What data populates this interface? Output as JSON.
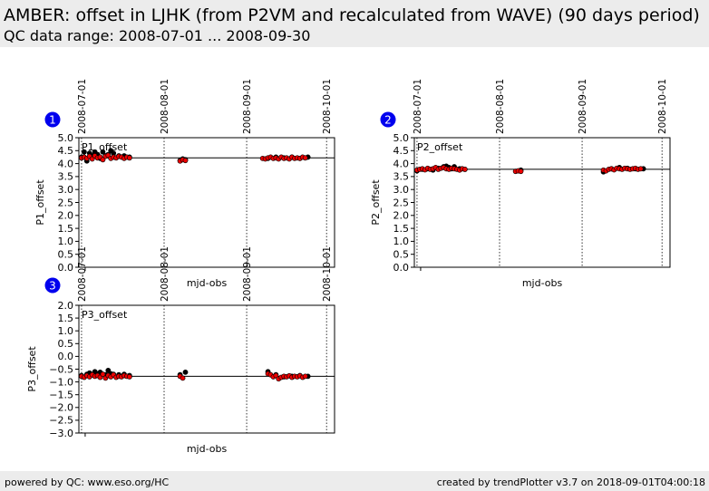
{
  "header": {
    "title": "AMBER: offset in LJHK (from P2VM and recalculated from WAVE) (90 days period)",
    "subtitle": "QC data range: 2008-07-01 ... 2008-09-30"
  },
  "footer": {
    "left": "powered by QC: www.eso.org/HC",
    "right": "created by trendPlotter v3.7 on 2018-09-01T04:00:18"
  },
  "colors": {
    "series_black": "#000000",
    "series_red": "#ee0000",
    "badge": "#0000ee"
  },
  "chart_data": [
    {
      "type": "scatter",
      "panel": "1",
      "inner_label": "P1_offset",
      "xlabel": "mjd-obs",
      "ylabel": "P1_offset",
      "xlim": [
        "2008-06-30",
        "2008-10-04"
      ],
      "ylim": [
        0,
        5
      ],
      "yticks": [
        "0.0",
        "0.5",
        "1.0",
        "1.5",
        "2.0",
        "2.5",
        "3.0",
        "3.5",
        "4.0",
        "4.5",
        "5.0"
      ],
      "date_ticks": [
        "2008-07-01",
        "2008-08-01",
        "2008-09-01",
        "2008-10-01"
      ],
      "reference_line": 4.22,
      "series": [
        {
          "color": "black",
          "x": [
            "2008-07-01",
            "2008-07-02",
            "2008-07-03",
            "2008-07-04",
            "2008-07-05",
            "2008-07-06",
            "2008-07-07",
            "2008-07-08",
            "2008-07-09",
            "2008-07-10",
            "2008-07-11",
            "2008-07-12",
            "2008-07-13",
            "2008-07-15",
            "2008-07-17",
            "2008-07-19",
            "2008-08-07",
            "2008-08-08",
            "2008-08-09",
            "2008-09-09",
            "2008-09-12",
            "2008-09-15",
            "2008-09-18",
            "2008-09-21",
            "2008-09-24"
          ],
          "y": [
            4.25,
            4.45,
            4.1,
            4.4,
            4.3,
            4.45,
            4.35,
            4.2,
            4.45,
            4.3,
            4.35,
            4.5,
            4.4,
            4.3,
            4.3,
            4.25,
            4.12,
            4.18,
            4.15,
            4.2,
            4.25,
            4.22,
            4.25,
            4.2,
            4.25
          ]
        },
        {
          "color": "red",
          "x": [
            "2008-07-01",
            "2008-07-02",
            "2008-07-03",
            "2008-07-04",
            "2008-07-05",
            "2008-07-06",
            "2008-07-07",
            "2008-07-08",
            "2008-07-09",
            "2008-07-10",
            "2008-07-11",
            "2008-07-12",
            "2008-07-13",
            "2008-07-14",
            "2008-07-15",
            "2008-07-16",
            "2008-07-17",
            "2008-07-18",
            "2008-07-19",
            "2008-08-07",
            "2008-08-08",
            "2008-08-09",
            "2008-09-07",
            "2008-09-08",
            "2008-09-09",
            "2008-09-10",
            "2008-09-11",
            "2008-09-12",
            "2008-09-13",
            "2008-09-14",
            "2008-09-15",
            "2008-09-16",
            "2008-09-17",
            "2008-09-18",
            "2008-09-19",
            "2008-09-20",
            "2008-09-21",
            "2008-09-22",
            "2008-09-23"
          ],
          "y": [
            4.22,
            4.25,
            4.2,
            4.28,
            4.18,
            4.3,
            4.22,
            4.25,
            4.15,
            4.28,
            4.32,
            4.2,
            4.25,
            4.22,
            4.28,
            4.25,
            4.2,
            4.25,
            4.22,
            4.1,
            4.15,
            4.12,
            4.2,
            4.18,
            4.22,
            4.25,
            4.2,
            4.22,
            4.18,
            4.25,
            4.2,
            4.22,
            4.18,
            4.25,
            4.2,
            4.22,
            4.2,
            4.25,
            4.22
          ]
        }
      ]
    },
    {
      "type": "scatter",
      "panel": "2",
      "inner_label": "P2_offset",
      "xlabel": "mjd-obs",
      "ylabel": "P2_offset",
      "xlim": [
        "2008-06-30",
        "2008-10-04"
      ],
      "ylim": [
        0,
        5
      ],
      "yticks": [
        "0.0",
        "0.5",
        "1.0",
        "1.5",
        "2.0",
        "2.5",
        "3.0",
        "3.5",
        "4.0",
        "4.5",
        "5.0"
      ],
      "date_ticks": [
        "2008-07-01",
        "2008-08-01",
        "2008-09-01",
        "2008-10-01"
      ],
      "reference_line": 3.78,
      "series": [
        {
          "color": "black",
          "x": [
            "2008-07-01",
            "2008-07-03",
            "2008-07-05",
            "2008-07-07",
            "2008-07-09",
            "2008-07-11",
            "2008-07-12",
            "2008-07-13",
            "2008-07-14",
            "2008-07-15",
            "2008-07-17",
            "2008-07-19",
            "2008-08-08",
            "2008-08-09",
            "2008-09-09",
            "2008-09-12",
            "2008-09-15",
            "2008-09-18",
            "2008-09-21",
            "2008-09-24"
          ],
          "y": [
            3.72,
            3.78,
            3.8,
            3.75,
            3.82,
            3.88,
            3.9,
            3.85,
            3.8,
            3.88,
            3.8,
            3.78,
            3.72,
            3.75,
            3.68,
            3.8,
            3.85,
            3.82,
            3.8,
            3.8
          ]
        },
        {
          "color": "red",
          "x": [
            "2008-07-01",
            "2008-07-02",
            "2008-07-03",
            "2008-07-04",
            "2008-07-05",
            "2008-07-06",
            "2008-07-07",
            "2008-07-08",
            "2008-07-09",
            "2008-07-10",
            "2008-07-11",
            "2008-07-12",
            "2008-07-13",
            "2008-07-14",
            "2008-07-15",
            "2008-07-16",
            "2008-07-17",
            "2008-07-18",
            "2008-07-19",
            "2008-08-07",
            "2008-08-08",
            "2008-08-09",
            "2008-09-09",
            "2008-09-10",
            "2008-09-11",
            "2008-09-12",
            "2008-09-13",
            "2008-09-14",
            "2008-09-15",
            "2008-09-16",
            "2008-09-17",
            "2008-09-18",
            "2008-09-19",
            "2008-09-20",
            "2008-09-21",
            "2008-09-22",
            "2008-09-23"
          ],
          "y": [
            3.75,
            3.78,
            3.8,
            3.76,
            3.82,
            3.78,
            3.8,
            3.85,
            3.78,
            3.82,
            3.85,
            3.8,
            3.78,
            3.82,
            3.8,
            3.78,
            3.75,
            3.8,
            3.78,
            3.7,
            3.72,
            3.7,
            3.75,
            3.72,
            3.78,
            3.8,
            3.76,
            3.82,
            3.8,
            3.78,
            3.82,
            3.8,
            3.78,
            3.8,
            3.82,
            3.78,
            3.8
          ]
        }
      ]
    },
    {
      "type": "scatter",
      "panel": "3",
      "inner_label": "P3_offset",
      "xlabel": "mjd-obs",
      "ylabel": "P3_offset",
      "xlim": [
        "2008-06-30",
        "2008-10-04"
      ],
      "ylim": [
        -3,
        2
      ],
      "yticks": [
        "−3.0",
        "−2.5",
        "−2.0",
        "−1.5",
        "−1.0",
        "−0.5",
        "0.0",
        "0.5",
        "1.0",
        "1.5",
        "2.0"
      ],
      "date_ticks": [
        "2008-07-01",
        "2008-08-01",
        "2008-09-01",
        "2008-10-01"
      ],
      "reference_line": -0.78,
      "series": [
        {
          "color": "black",
          "x": [
            "2008-07-01",
            "2008-07-03",
            "2008-07-04",
            "2008-07-05",
            "2008-07-06",
            "2008-07-07",
            "2008-07-08",
            "2008-07-09",
            "2008-07-10",
            "2008-07-11",
            "2008-07-12",
            "2008-07-13",
            "2008-07-15",
            "2008-07-17",
            "2008-07-19",
            "2008-08-07",
            "2008-08-09",
            "2008-09-09",
            "2008-09-12",
            "2008-09-15",
            "2008-09-18",
            "2008-09-21",
            "2008-09-24"
          ],
          "y": [
            -0.75,
            -0.7,
            -0.65,
            -0.72,
            -0.6,
            -0.68,
            -0.62,
            -0.7,
            -0.72,
            -0.55,
            -0.68,
            -0.7,
            -0.72,
            -0.7,
            -0.75,
            -0.72,
            -0.62,
            -0.6,
            -0.72,
            -0.8,
            -0.78,
            -0.75,
            -0.78
          ]
        },
        {
          "color": "red",
          "x": [
            "2008-07-01",
            "2008-07-02",
            "2008-07-03",
            "2008-07-04",
            "2008-07-05",
            "2008-07-06",
            "2008-07-07",
            "2008-07-08",
            "2008-07-09",
            "2008-07-10",
            "2008-07-11",
            "2008-07-12",
            "2008-07-13",
            "2008-07-14",
            "2008-07-15",
            "2008-07-16",
            "2008-07-17",
            "2008-07-18",
            "2008-07-19",
            "2008-08-07",
            "2008-08-08",
            "2008-09-09",
            "2008-09-10",
            "2008-09-11",
            "2008-09-12",
            "2008-09-13",
            "2008-09-14",
            "2008-09-15",
            "2008-09-16",
            "2008-09-17",
            "2008-09-18",
            "2008-09-19",
            "2008-09-20",
            "2008-09-21",
            "2008-09-22",
            "2008-09-23"
          ],
          "y": [
            -0.78,
            -0.82,
            -0.75,
            -0.8,
            -0.72,
            -0.78,
            -0.75,
            -0.82,
            -0.7,
            -0.85,
            -0.75,
            -0.8,
            -0.72,
            -0.82,
            -0.78,
            -0.8,
            -0.75,
            -0.78,
            -0.8,
            -0.78,
            -0.85,
            -0.68,
            -0.72,
            -0.8,
            -0.75,
            -0.88,
            -0.82,
            -0.78,
            -0.8,
            -0.76,
            -0.82,
            -0.78,
            -0.8,
            -0.76,
            -0.82,
            -0.78
          ]
        }
      ]
    }
  ]
}
